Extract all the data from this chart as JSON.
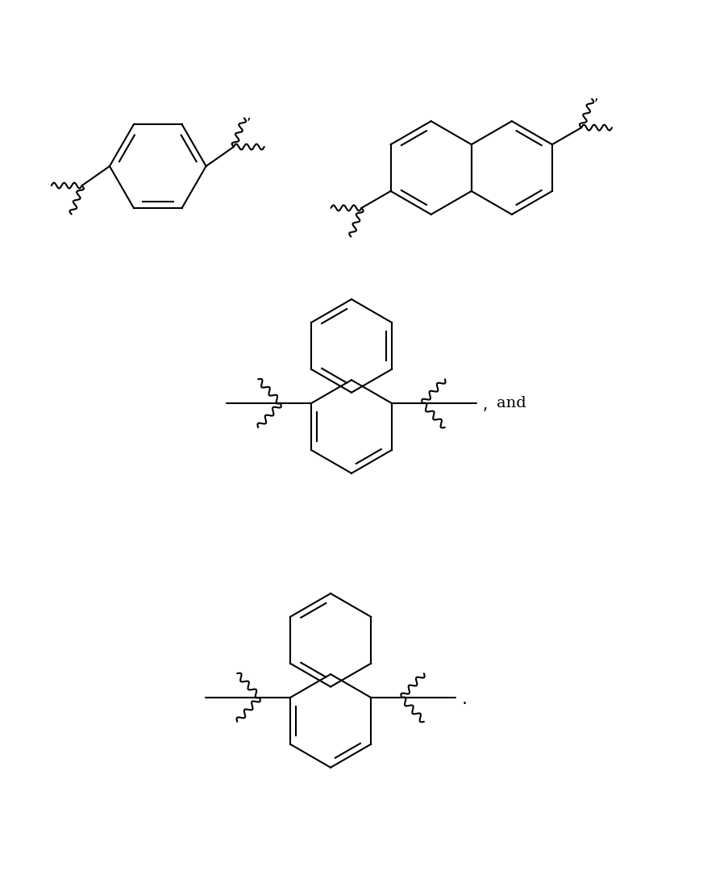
{
  "background_color": "#ffffff",
  "line_color": "#000000",
  "line_width": 1.5,
  "figsize": [
    8.72,
    10.85
  ],
  "dpi": 100
}
